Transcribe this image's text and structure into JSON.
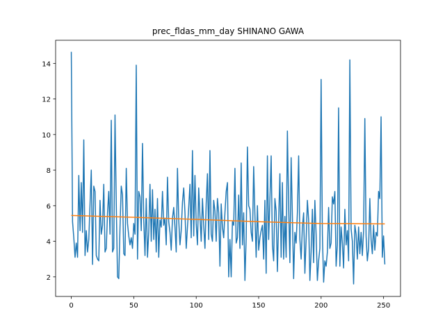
{
  "chart_data": {
    "type": "line",
    "title": "prec_fldas_mm_day SHINANO GAWA",
    "xlim": [
      -12.55,
      263.55
    ],
    "xticks": [
      0,
      50,
      100,
      150,
      200,
      250
    ],
    "ylim": [
      0.9,
      15.3
    ],
    "yticks": [
      2,
      4,
      6,
      8,
      10,
      12,
      14
    ],
    "series": [
      {
        "color": "#1f77b4",
        "values": [
          14.65,
          5.1,
          4.2,
          3.1,
          3.9,
          3.1,
          7.7,
          4.6,
          7.3,
          4.5,
          9.7,
          3.2,
          4.6,
          3.4,
          4.1,
          6.1,
          8.0,
          2.7,
          7.1,
          6.8,
          3.2,
          3.0,
          2.9,
          6.3,
          4.4,
          4.9,
          7.2,
          3.4,
          3.6,
          5.6,
          6.8,
          4.4,
          10.8,
          3.4,
          3.6,
          11.1,
          6.1,
          2.0,
          1.9,
          4.8,
          7.1,
          6.6,
          3.3,
          3.2,
          8.1,
          5.0,
          4.3,
          3.8,
          4.2,
          3.6,
          5.0,
          4.4,
          13.9,
          3.0,
          6.8,
          6.5,
          4.6,
          9.5,
          5.2,
          3.2,
          6.4,
          3.1,
          4.5,
          7.2,
          4.0,
          6.9,
          4.1,
          5.8,
          3.4,
          6.4,
          3.1,
          5.2,
          4.8,
          6.8,
          4.9,
          5.3,
          3.8,
          7.6,
          5.1,
          4.5,
          3.5,
          5.3,
          5.9,
          4.8,
          3.4,
          8.1,
          5.2,
          3.8,
          4.6,
          6.2,
          7.0,
          5.6,
          3.6,
          4.8,
          5.9,
          7.2,
          4.2,
          9.1,
          4.3,
          7.7,
          5.0,
          3.8,
          7.0,
          5.4,
          4.0,
          6.4,
          4.9,
          3.6,
          6.1,
          7.8,
          4.1,
          9.1,
          4.4,
          4.0,
          6.3,
          5.7,
          4.0,
          6.4,
          5.6,
          2.6,
          6.1,
          4.8,
          4.2,
          5.6,
          6.8,
          7.3,
          2.0,
          4.1,
          2.0,
          5.1,
          4.9,
          8.1,
          3.9,
          4.2,
          6.6,
          3.6,
          8.4,
          3.8,
          5.6,
          1.8,
          4.2,
          9.3,
          6.0,
          5.8,
          4.5,
          4.0,
          8.2,
          5.5,
          3.1,
          6.0,
          3.5,
          4.2,
          4.6,
          4.9,
          3.0,
          6.3,
          2.2,
          8.8,
          4.1,
          6.3,
          8.8,
          3.8,
          2.9,
          6.4,
          5.7,
          2.3,
          5.2,
          7.8,
          3.1,
          7.3,
          3.0,
          5.4,
          3.1,
          10.2,
          6.0,
          2.8,
          8.7,
          5.4,
          1.9,
          4.5,
          3.9,
          5.6,
          8.8,
          4.1,
          3.0,
          4.8,
          5.6,
          2.2,
          4.1,
          6.3,
          5.2,
          1.8,
          3.4,
          5.8,
          2.8,
          6.3,
          4.4,
          1.8,
          2.9,
          3.6,
          13.1,
          4.4,
          1.7,
          2.9,
          2.6,
          3.4,
          5.9,
          3.6,
          3.9,
          6.5,
          6.1,
          6.8,
          2.6,
          3.8,
          11.5,
          2.6,
          4.8,
          3.9,
          2.5,
          5.8,
          3.8,
          4.6,
          2.9,
          14.2,
          4.7,
          4.0,
          1.6,
          4.9,
          4.4,
          3.0,
          4.8,
          3.3,
          4.5,
          3.2,
          4.6,
          10.9,
          4.3,
          2.9,
          3.6,
          6.4,
          4.1,
          3.3,
          4.9,
          3.5,
          4.5,
          4.3,
          6.8,
          6.4,
          11.0,
          3.1,
          4.3,
          2.7
        ]
      },
      {
        "color": "#ff7f0e",
        "x": [
          0,
          50,
          100,
          150,
          200,
          251
        ],
        "values": [
          5.45,
          5.35,
          5.23,
          5.1,
          5.0,
          4.98
        ]
      }
    ]
  }
}
